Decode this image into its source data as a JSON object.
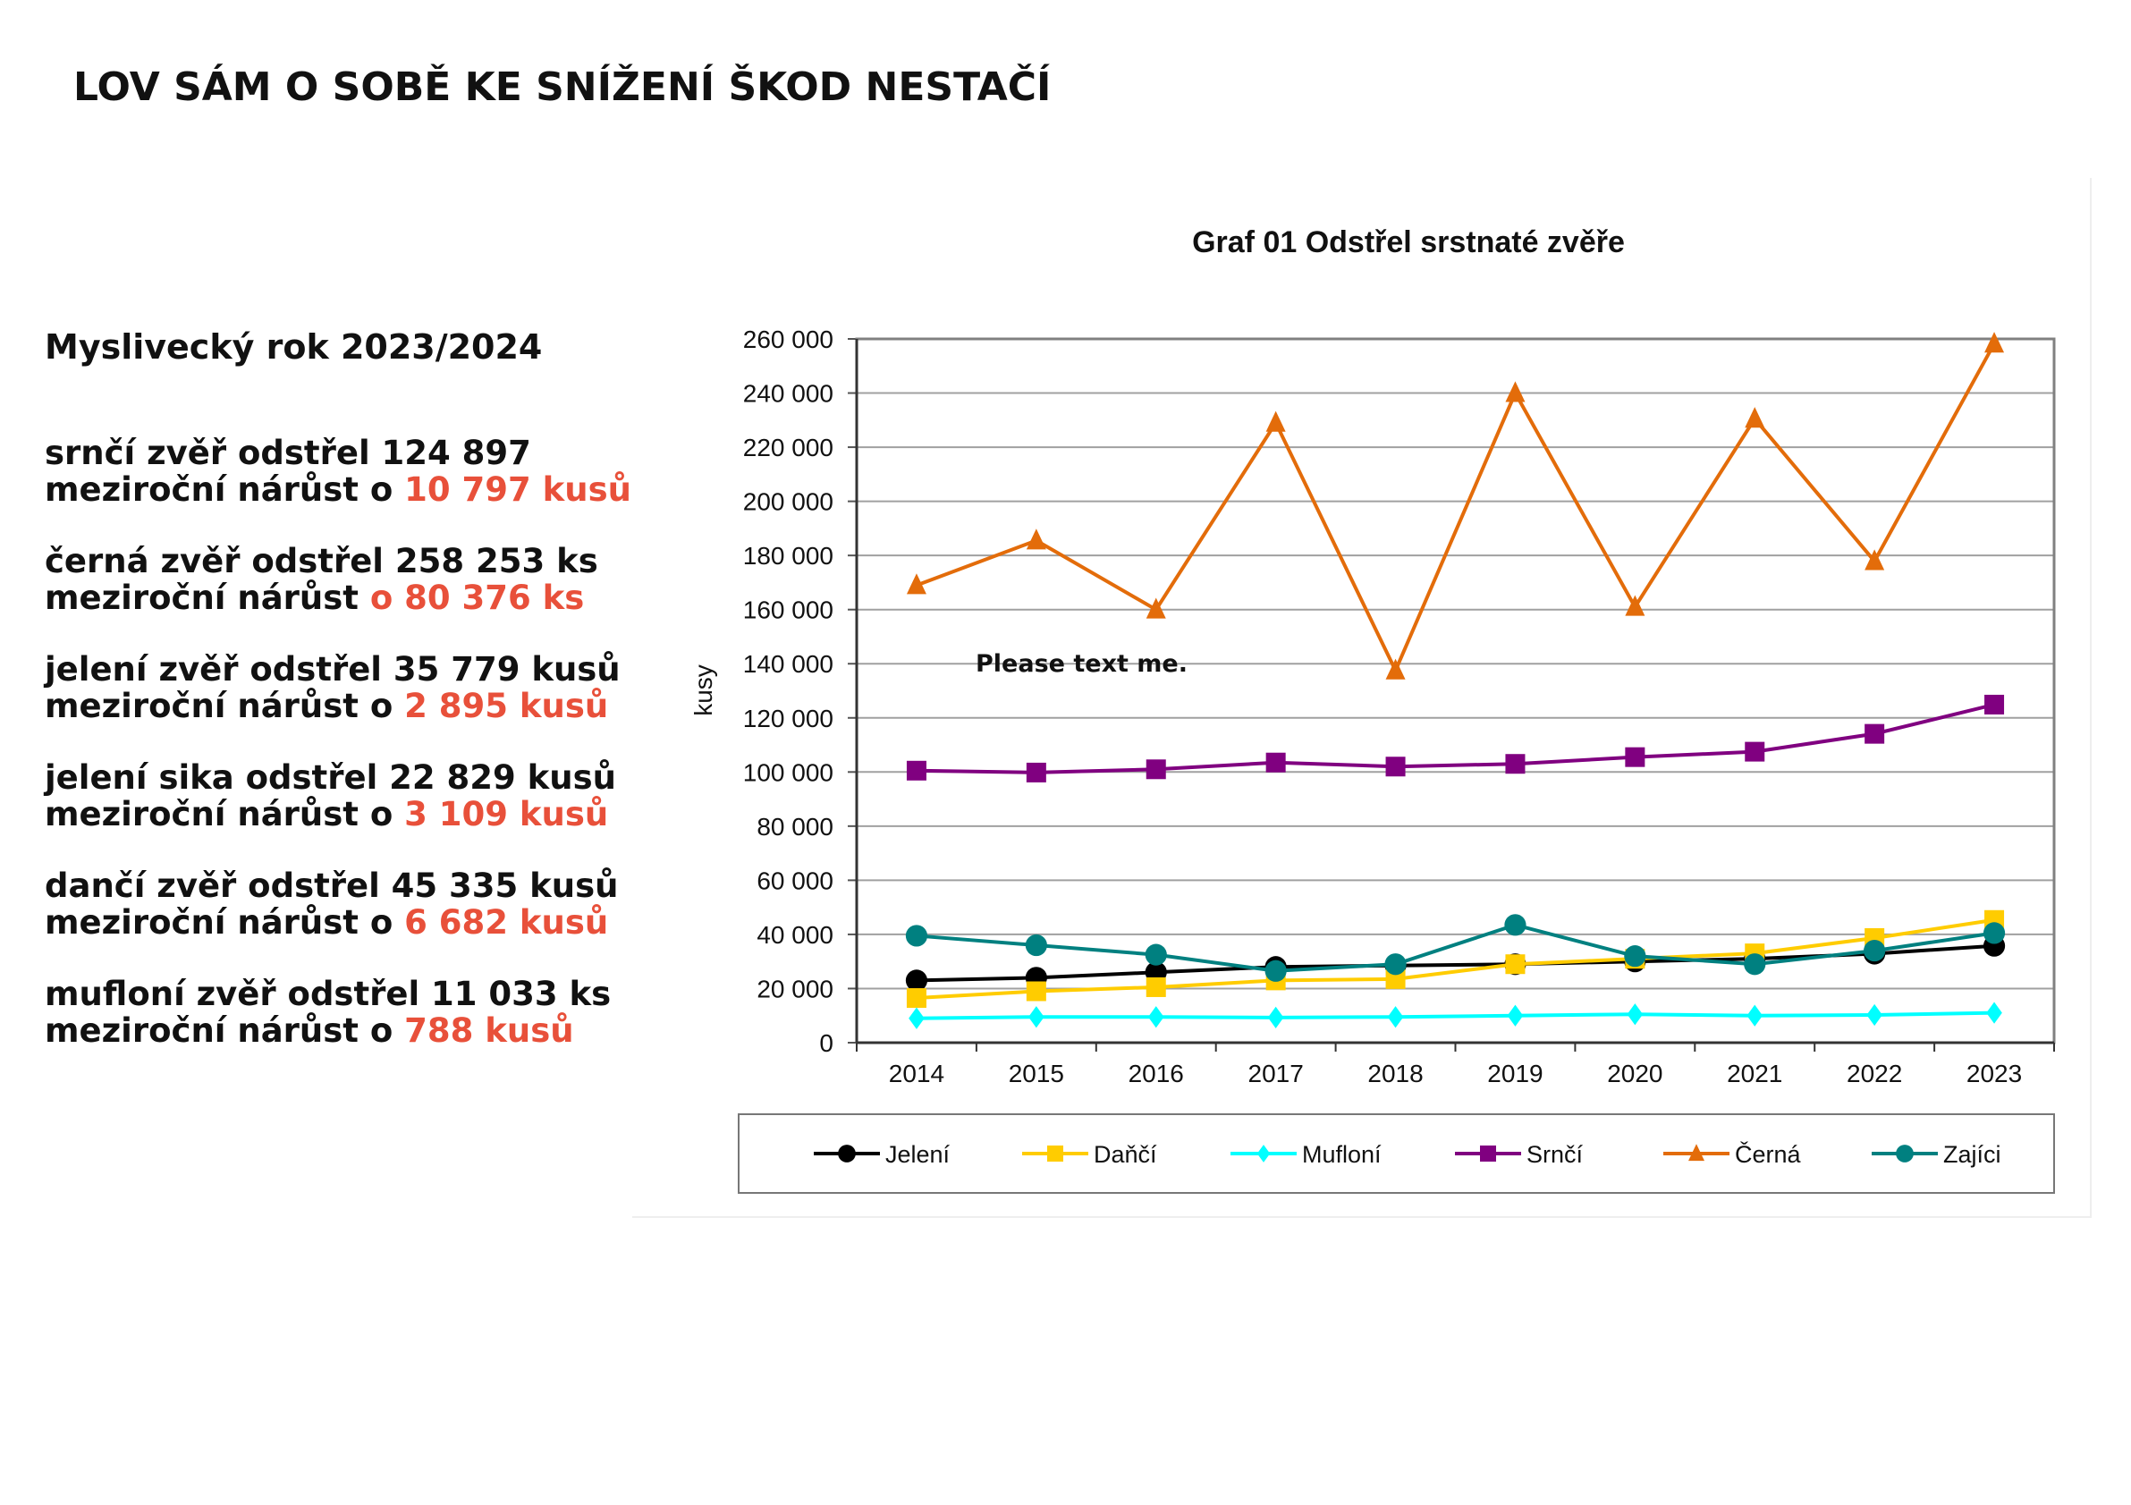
{
  "heading": "LOV SÁM O SOBĚ KE SNÍŽENÍ ŠKOD NESTAČÍ",
  "year_label": "Myslivecký rok 2023/2024",
  "stats": [
    {
      "line1": "srnčí zvěř odstřel 124 897",
      "line2": "meziroční nárůst o ",
      "highlight": "10 797 kusů"
    },
    {
      "line1": "černá zvěř odstřel 258 253 ks",
      "line2": "meziroční nárůst ",
      "highlight": "o 80 376 ks"
    },
    {
      "line1": "jelení zvěř odstřel  35 779 kusů",
      "line2": "meziroční nárůst o ",
      "highlight": " 2 895  kusů"
    },
    {
      "line1": "jelení sika odstřel 22 829 kusů",
      "line2": "meziroční nárůst o ",
      "highlight": "3 109 kusů"
    },
    {
      "line1": "dančí zvěř odstřel 45 335 kusů",
      "line2": "meziroční nárůst o ",
      "highlight": "6 682 kusů"
    },
    {
      "line1": "mufloní zvěř odstřel 11 033 ks",
      "line2": "meziroční nárůst o ",
      "highlight": "788 kusů"
    }
  ],
  "colors": {
    "highlight": "#e8503a"
  },
  "chart_data": {
    "type": "line",
    "title": "Graf 01  Odstřel srstnaté zvěře",
    "xlabel": "",
    "ylabel": "kusy",
    "ylim": [
      0,
      260000
    ],
    "yticks": [
      0,
      20000,
      40000,
      60000,
      80000,
      100000,
      120000,
      140000,
      160000,
      180000,
      200000,
      220000,
      240000,
      260000
    ],
    "ytick_labels": [
      "0",
      "20 000",
      "40 000",
      "60 000",
      "80 000",
      "100 000",
      "120 000",
      "140 000",
      "160 000",
      "180 000",
      "200 000",
      "220 000",
      "240 000",
      "260 000"
    ],
    "categories": [
      "2014",
      "2015",
      "2016",
      "2017",
      "2018",
      "2019",
      "2020",
      "2021",
      "2022",
      "2023"
    ],
    "grid": true,
    "legend_position": "bottom",
    "annotation": "Please text me.",
    "series": [
      {
        "name": "Jelení",
        "color": "#000000",
        "marker": "circle",
        "values": [
          23000,
          24000,
          26000,
          28000,
          28500,
          29000,
          30000,
          31000,
          32884,
          35779
        ]
      },
      {
        "name": "Daňčí",
        "color": "#ffcc00",
        "marker": "square",
        "values": [
          16500,
          19000,
          20500,
          23000,
          23500,
          29000,
          31000,
          33000,
          38653,
          45335
        ]
      },
      {
        "name": "Mufloní",
        "color": "#00ffff",
        "marker": "diamond",
        "values": [
          9000,
          9500,
          9500,
          9300,
          9500,
          10000,
          10500,
          10000,
          10245,
          11033
        ]
      },
      {
        "name": "Srnčí",
        "color": "#800080",
        "marker": "square",
        "values": [
          100500,
          99800,
          101000,
          103500,
          102000,
          103000,
          105500,
          107500,
          114100,
          124897
        ]
      },
      {
        "name": "Černá",
        "color": "#e36c0a",
        "marker": "triangle",
        "values": [
          169000,
          185500,
          160000,
          229000,
          137500,
          240000,
          161000,
          230500,
          177877,
          258253
        ]
      },
      {
        "name": "Zajíci",
        "color": "#008080",
        "marker": "circle",
        "values": [
          39500,
          36000,
          32500,
          26500,
          29000,
          43500,
          32000,
          29000,
          34000,
          40500
        ]
      }
    ]
  }
}
